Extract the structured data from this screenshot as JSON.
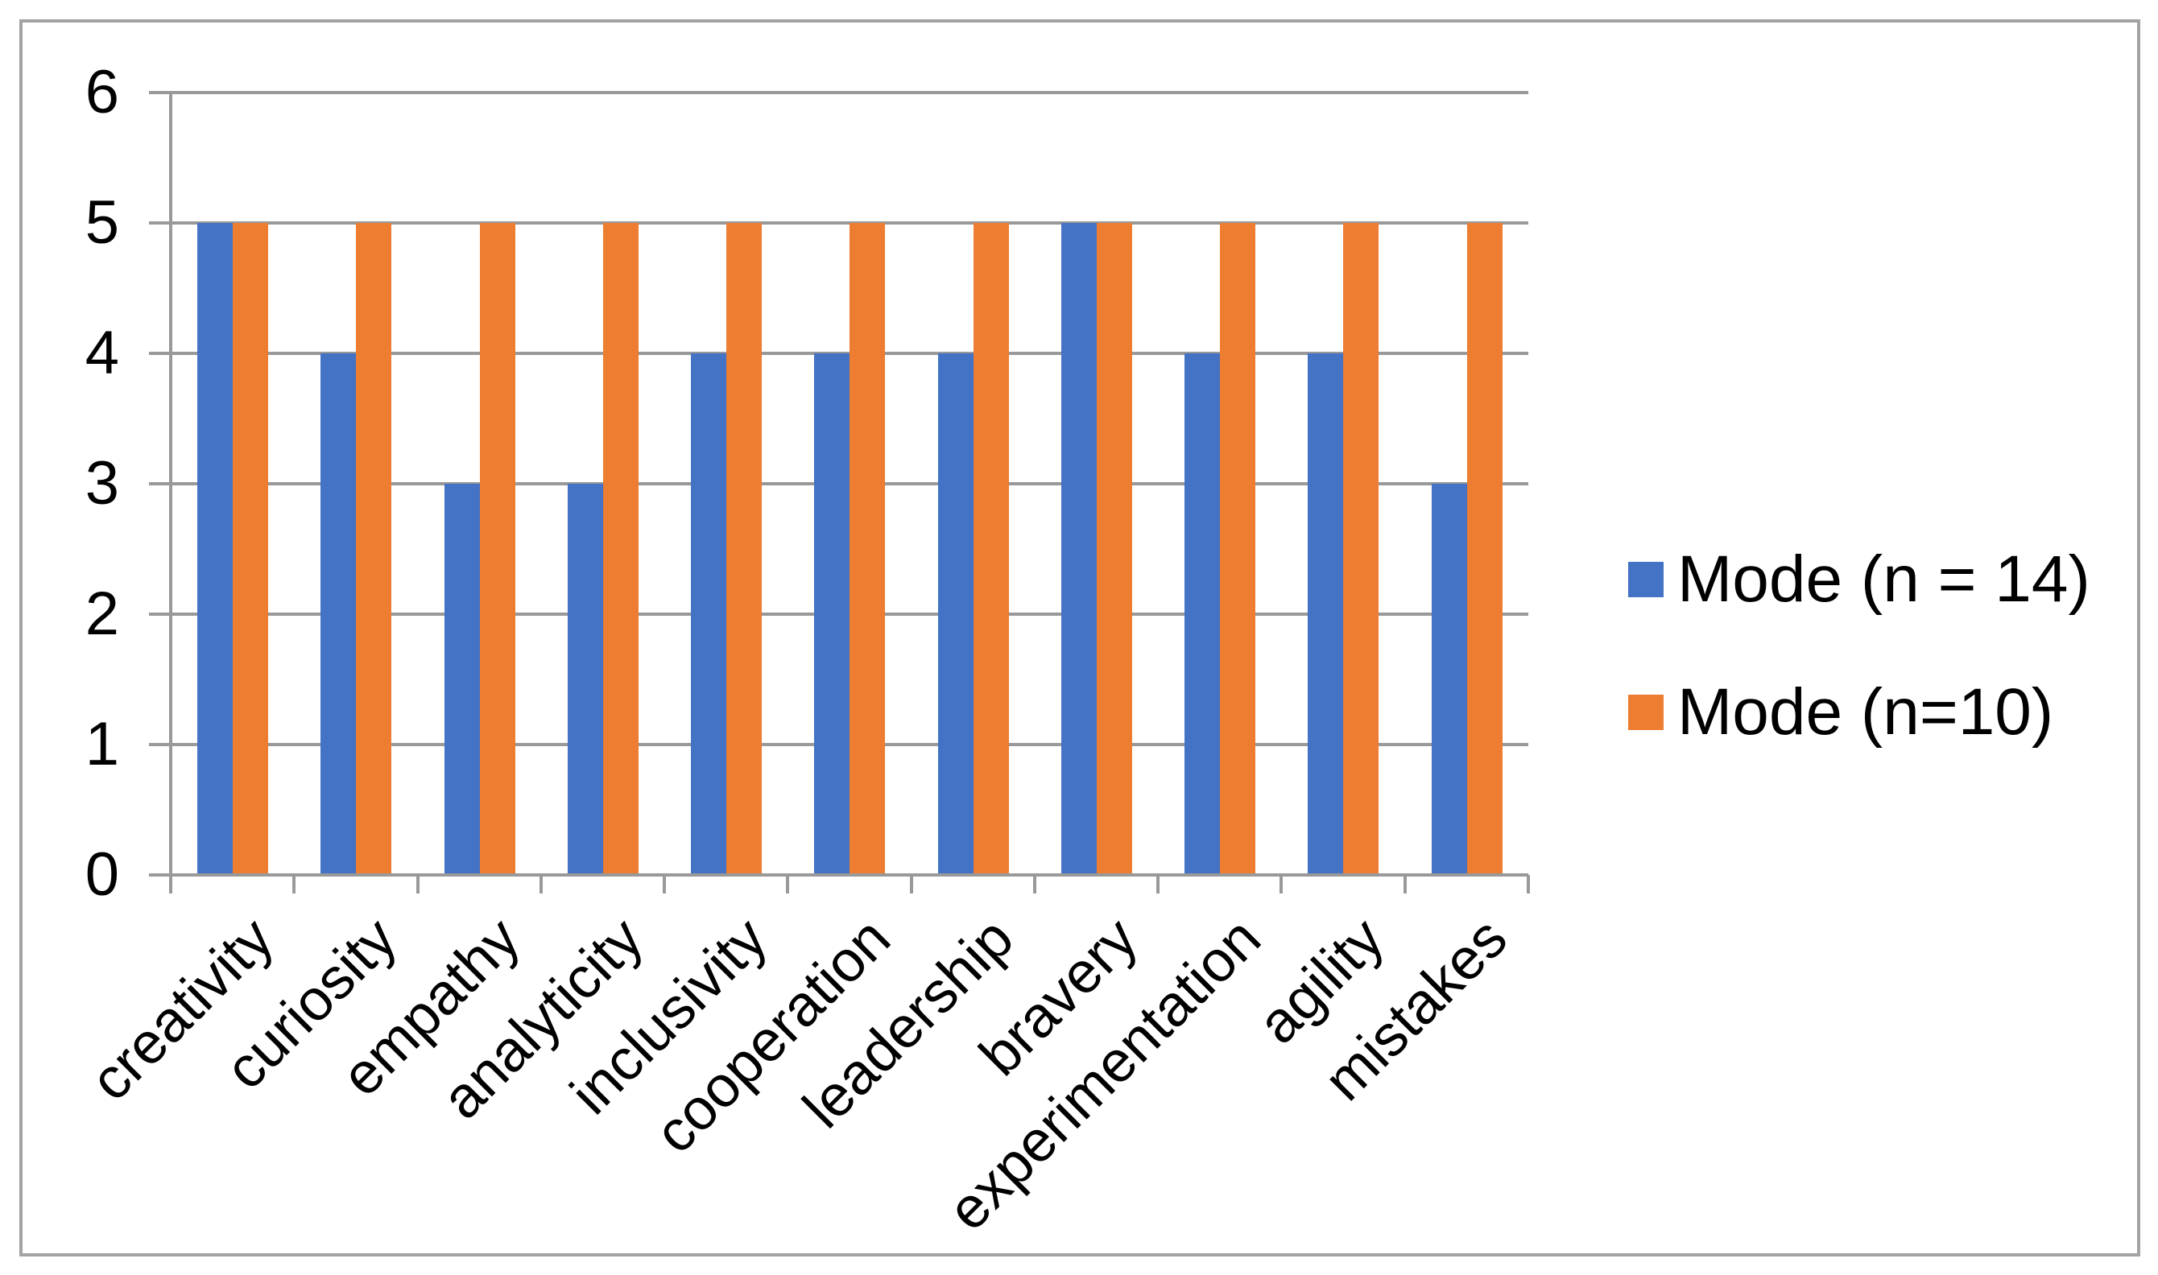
{
  "chart_data": {
    "type": "bar",
    "title": "",
    "xlabel": "",
    "ylabel": "",
    "categories": [
      "creativity",
      "curiosity",
      "empathy",
      "analyticity",
      "inclusivity",
      "cooperation",
      "leadership",
      "bravery",
      "experimentation",
      "agility",
      "mistakes"
    ],
    "series": [
      {
        "name": "Mode (n = 14)",
        "color": "#4472C4",
        "values": [
          5,
          4,
          3,
          3,
          4,
          4,
          4,
          5,
          4,
          4,
          3
        ]
      },
      {
        "name": "Mode (n=10)",
        "color": "#ED7D31",
        "values": [
          5,
          5,
          5,
          5,
          5,
          5,
          5,
          5,
          5,
          5,
          5
        ]
      }
    ],
    "ylim": [
      0,
      6
    ],
    "yticks": [
      "0",
      "1",
      "2",
      "3",
      "4",
      "5",
      "6"
    ],
    "grid": true,
    "legend_position": "right"
  },
  "colors": {
    "series_blue": "#4472C4",
    "series_orange": "#ED7D31",
    "axis_gray": "#999999",
    "border_gray": "#a3a3a3",
    "background": "#ffffff",
    "text": "#000000"
  }
}
